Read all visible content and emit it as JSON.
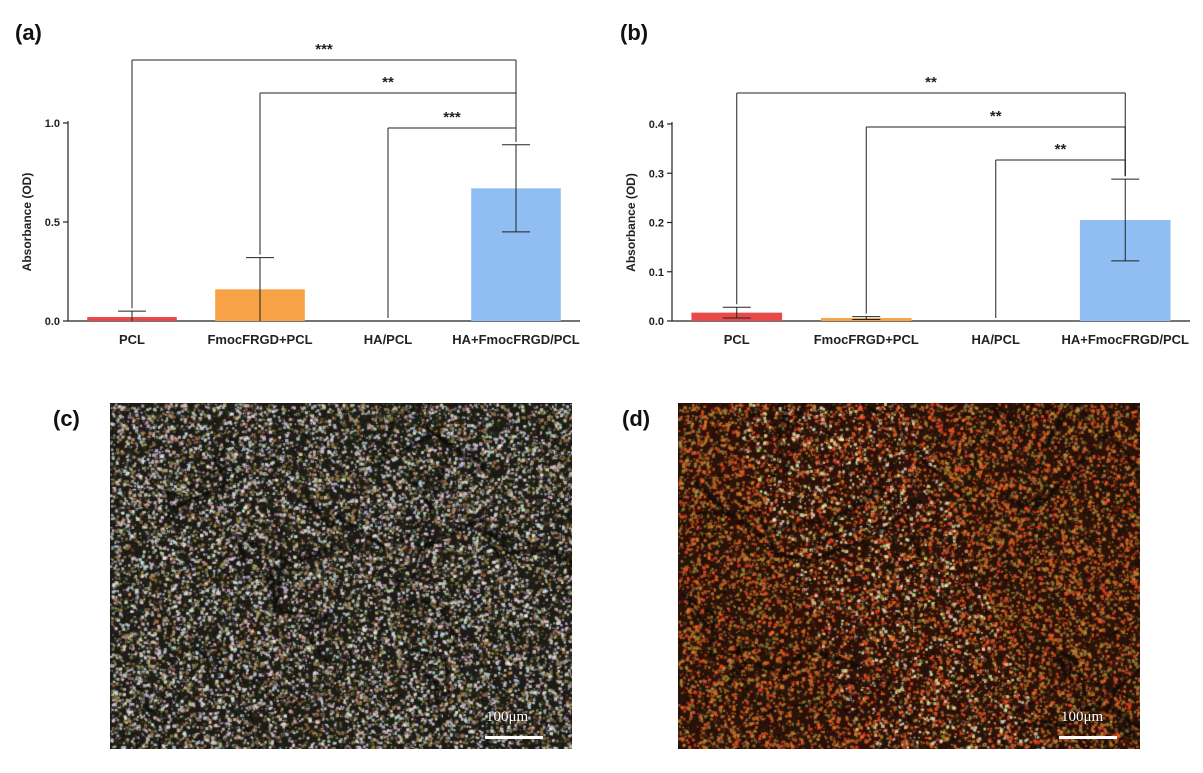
{
  "panels": {
    "a": "(a)",
    "b": "(b)",
    "c": "(c)",
    "d": "(d)"
  },
  "colors": {
    "PCL": "#e84a4a",
    "FmocFRGD+PCL": "#f7a246",
    "HA/PCL": "#9dc46a",
    "HA+FmocFRGD/PCL": "#90bdf2"
  },
  "chart_data": [
    {
      "type": "bar",
      "panel": "(a)",
      "ylabel": "Absorbance (OD)",
      "categories": [
        "PCL",
        "FmocFRGD+PCL",
        "HA/PCL",
        "HA+FmocFRGD/PCL"
      ],
      "values": [
        0.02,
        0.16,
        0.0,
        0.67
      ],
      "errors": [
        0.03,
        0.16,
        0.0,
        0.22
      ],
      "ylim": [
        0,
        1.0
      ],
      "yticks": [
        0.0,
        0.5,
        1.0
      ],
      "ytick_labels": [
        "0.0",
        "0.5",
        "1.0"
      ],
      "significance": [
        {
          "from": 0,
          "to": 3,
          "label": "***"
        },
        {
          "from": 1,
          "to": 3,
          "label": "**"
        },
        {
          "from": 2,
          "to": 3,
          "label": "***"
        }
      ]
    },
    {
      "type": "bar",
      "panel": "(b)",
      "ylabel": "Absorbance (OD)",
      "categories": [
        "PCL",
        "FmocFRGD+PCL",
        "HA/PCL",
        "HA+FmocFRGD/PCL"
      ],
      "values": [
        0.017,
        0.006,
        0.0,
        0.205
      ],
      "errors": [
        0.011,
        0.003,
        0.0,
        0.083
      ],
      "ylim": [
        0,
        0.4
      ],
      "yticks": [
        0.0,
        0.1,
        0.2,
        0.3,
        0.4
      ],
      "ytick_labels": [
        "0.0",
        "0.1",
        "0.2",
        "0.3",
        "0.4"
      ],
      "significance": [
        {
          "from": 0,
          "to": 3,
          "label": "**"
        },
        {
          "from": 1,
          "to": 3,
          "label": "**"
        },
        {
          "from": 2,
          "to": 3,
          "label": "**"
        }
      ]
    }
  ],
  "micrographs": {
    "c": {
      "scale_label": "100μm",
      "tint": "blue-gray"
    },
    "d": {
      "scale_label": "100μm",
      "tint": "red-orange"
    }
  }
}
